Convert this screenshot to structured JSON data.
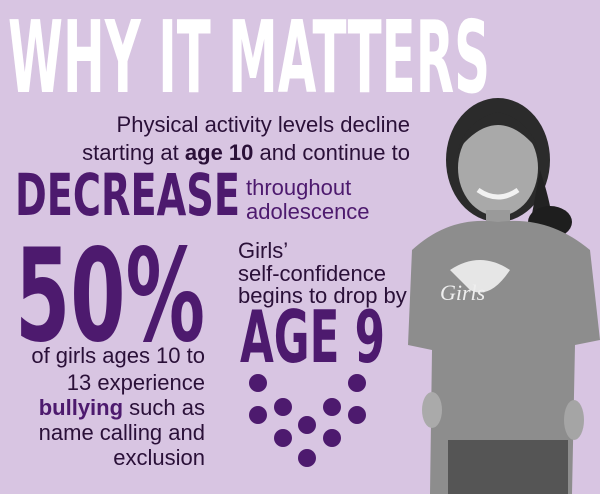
{
  "title": "WHY IT MATTERS",
  "intro": {
    "line1": "Physical activity levels decline",
    "line2_pre": "starting at",
    "line2_bold": "age 10",
    "line2_post": "and continue to",
    "big": "DECREASE",
    "small1": "throughout",
    "small2": "adolescence"
  },
  "stat_left": {
    "big": "50%",
    "line1": "of girls ages 10 to",
    "line2": "13 experience",
    "line3_bold": "bullying",
    "line3_post": "such as",
    "line4": "name calling and",
    "line5": "exclusion"
  },
  "stat_right": {
    "line1": "Girls’",
    "line2": "self-confidence",
    "line3": "begins to drop by",
    "big": "AGE 9"
  }
}
